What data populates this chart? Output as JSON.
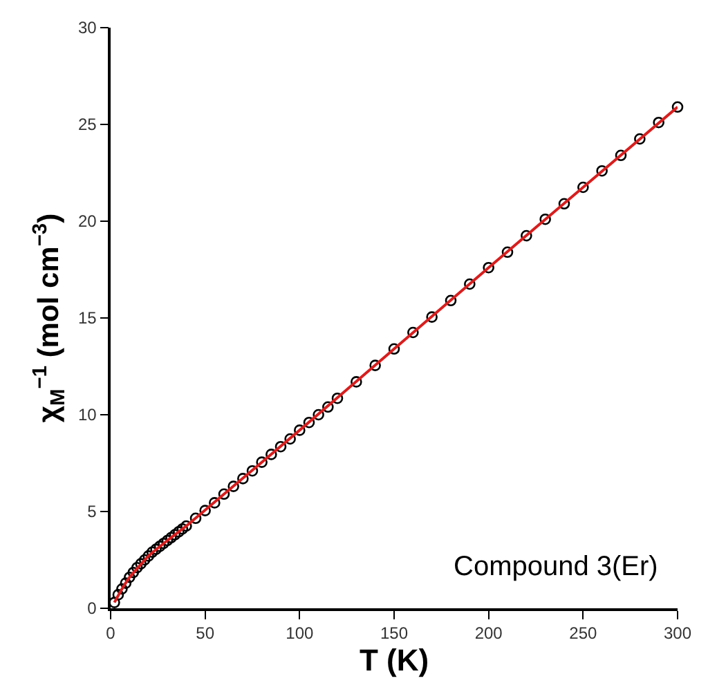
{
  "chart_data": {
    "type": "scatter",
    "xlabel": "T (K)",
    "ylabel": "χ$_{M}$$^{−1}$ (mol cm$^{−3}$)",
    "xlim": [
      0,
      300
    ],
    "ylim": [
      0,
      30
    ],
    "xticks": [
      0,
      50,
      100,
      150,
      200,
      250,
      300
    ],
    "yticks": [
      0,
      5,
      10,
      15,
      20,
      25,
      30
    ],
    "annotations": [
      "Compound 3(Er)"
    ],
    "series": [
      {
        "marker": "circle",
        "color": "#000000",
        "x": [
          2,
          4,
          6,
          8,
          10,
          12,
          14,
          16,
          18,
          20,
          22,
          24,
          26,
          28,
          30,
          32,
          34,
          36,
          38,
          40,
          45,
          50,
          55,
          60,
          65,
          70,
          75,
          80,
          85,
          90,
          95,
          100,
          105,
          110,
          115,
          120,
          130,
          140,
          150,
          160,
          170,
          180,
          190,
          200,
          210,
          220,
          230,
          240,
          250,
          260,
          270,
          280,
          290,
          300
        ],
        "values": [
          0.3,
          0.7,
          1.0,
          1.3,
          1.6,
          1.85,
          2.1,
          2.3,
          2.5,
          2.7,
          2.9,
          3.05,
          3.2,
          3.35,
          3.5,
          3.65,
          3.8,
          3.95,
          4.1,
          4.25,
          4.65,
          5.05,
          5.45,
          5.9,
          6.3,
          6.7,
          7.1,
          7.55,
          7.95,
          8.35,
          8.75,
          9.2,
          9.6,
          10.0,
          10.4,
          10.85,
          11.7,
          12.55,
          13.4,
          14.25,
          15.05,
          15.9,
          16.75,
          17.6,
          18.4,
          19.25,
          20.1,
          20.9,
          21.75,
          22.6,
          23.4,
          24.25,
          25.1,
          25.9
        ]
      },
      {
        "type": "line",
        "marker": "none",
        "line_style": "solid",
        "color": "#d81e1e",
        "x": [
          2,
          6,
          10,
          20,
          30,
          40,
          60,
          100,
          150,
          200,
          250,
          300
        ],
        "values": [
          0.3,
          1.0,
          1.6,
          2.7,
          3.5,
          4.25,
          5.9,
          9.2,
          13.4,
          17.6,
          21.75,
          25.9
        ]
      }
    ]
  }
}
